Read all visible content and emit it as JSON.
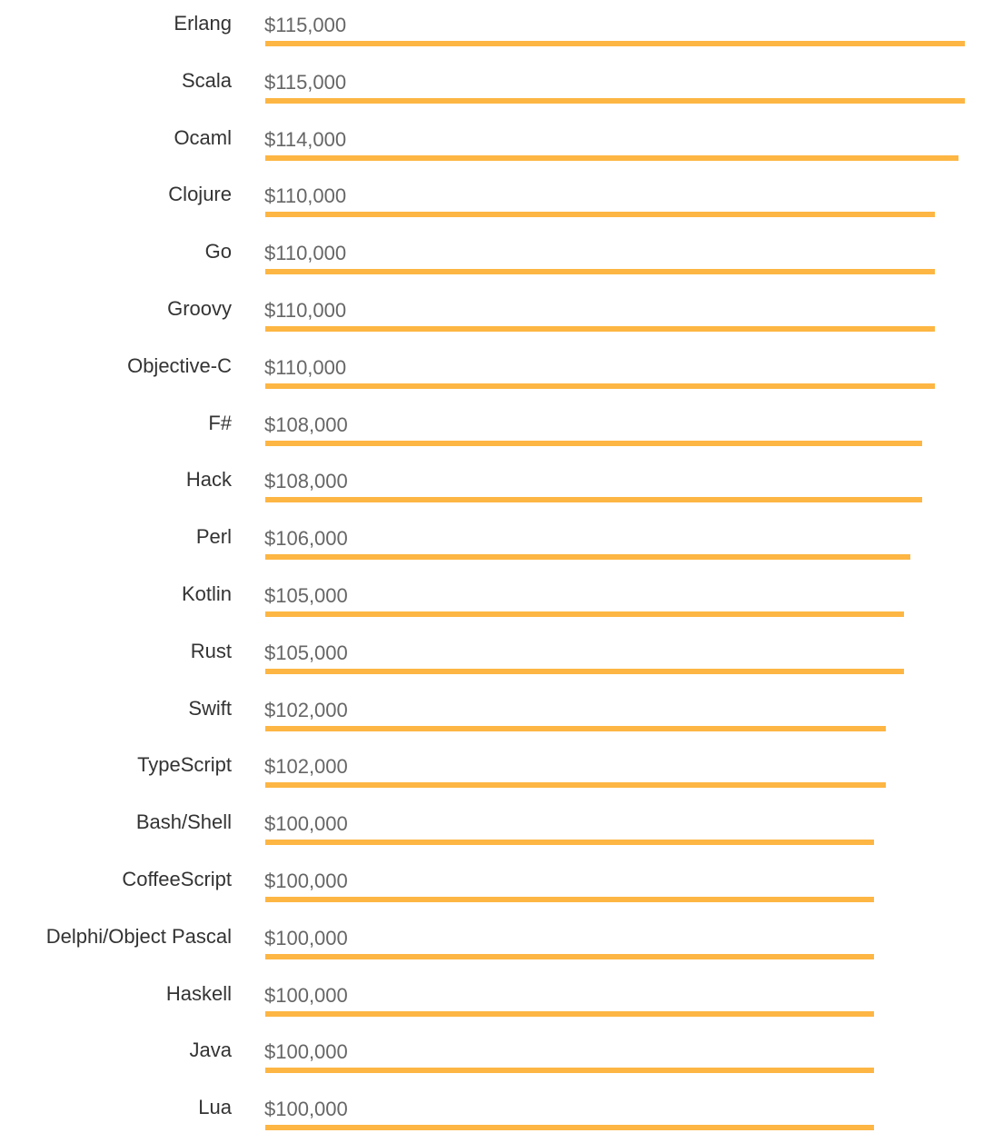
{
  "chart_data": {
    "type": "bar",
    "orientation": "horizontal",
    "bar_color": "#FDB643",
    "categories": [
      "Erlang",
      "Scala",
      "Ocaml",
      "Clojure",
      "Go",
      "Groovy",
      "Objective-C",
      "F#",
      "Hack",
      "Perl",
      "Kotlin",
      "Rust",
      "Swift",
      "TypeScript",
      "Bash/Shell",
      "CoffeeScript",
      "Delphi/Object Pascal",
      "Haskell",
      "Java",
      "Lua"
    ],
    "values": [
      115000,
      115000,
      114000,
      110000,
      110000,
      110000,
      110000,
      108000,
      108000,
      106000,
      105000,
      105000,
      102000,
      102000,
      100000,
      100000,
      100000,
      100000,
      100000,
      100000
    ],
    "value_labels": [
      "$115,000",
      "$115,000",
      "$114,000",
      "$110,000",
      "$110,000",
      "$110,000",
      "$110,000",
      "$108,000",
      "$108,000",
      "$106,000",
      "$105,000",
      "$105,000",
      "$102,000",
      "$102,000",
      "$100,000",
      "$100,000",
      "$100,000",
      "$100,000",
      "$100,000",
      "$100,000"
    ],
    "title": "",
    "xlabel": "",
    "ylabel": "",
    "grid": false
  }
}
